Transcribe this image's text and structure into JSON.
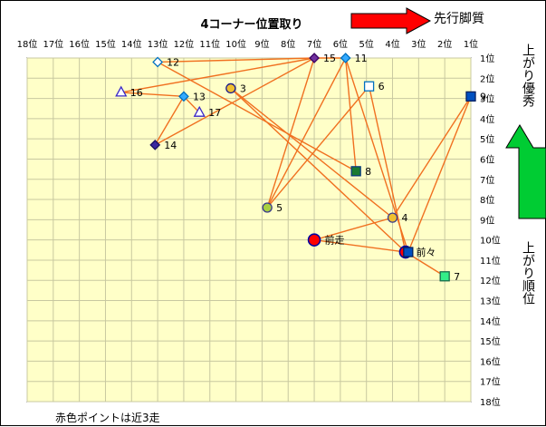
{
  "chart_data": {
    "type": "scatter",
    "title": "4コーナー位置取り",
    "x_arrow_label": "先行脚質",
    "y_arrow_label": "上がり優秀",
    "y_side_label": "上がり順位",
    "footnote": "赤色ポイントは近3走",
    "x_ticks": [
      "18位",
      "17位",
      "16位",
      "15位",
      "14位",
      "13位",
      "12位",
      "11位",
      "10位",
      "9位",
      "8位",
      "7位",
      "6位",
      "5位",
      "4位",
      "3位",
      "2位",
      "1位"
    ],
    "y_ticks": [
      "1位",
      "2位",
      "3位",
      "4位",
      "5位",
      "6位",
      "7位",
      "8位",
      "9位",
      "10位",
      "11位",
      "12位",
      "13位",
      "14位",
      "15位",
      "16位",
      "17位",
      "18位"
    ],
    "xlim": [
      18,
      1
    ],
    "ylim": [
      1,
      18
    ],
    "grid": true,
    "colors": {
      "line": "#f07020",
      "plot_bg": "#ffffc8",
      "grid": "#c8c8a0",
      "arrow_red": "#ff0000",
      "arrow_green": "#00cc33"
    },
    "points": [
      {
        "label": "15",
        "x": 7.0,
        "y": 1.0,
        "marker": "diamond",
        "fill": "#7030a0",
        "stroke": "#3a0060"
      },
      {
        "label": "11",
        "x": 5.8,
        "y": 1.0,
        "marker": "diamond",
        "fill": "#33aaff",
        "stroke": "#0070c0"
      },
      {
        "label": "12",
        "x": 13.0,
        "y": 1.2,
        "marker": "diamond",
        "fill": "#ffffff",
        "stroke": "#0070c0"
      },
      {
        "label": "6",
        "x": 4.9,
        "y": 2.4,
        "marker": "square",
        "fill": "#ffffff",
        "stroke": "#0070c0"
      },
      {
        "label": "3",
        "x": 10.2,
        "y": 2.5,
        "marker": "circle",
        "fill": "#f0c030",
        "stroke": "#1a1a8c"
      },
      {
        "label": "9",
        "x": 1.0,
        "y": 2.9,
        "marker": "square",
        "fill": "#0050c0",
        "stroke": "#002060"
      },
      {
        "label": "16",
        "x": 14.4,
        "y": 2.7,
        "marker": "triangle",
        "fill": "#ffffff",
        "stroke": "#3a28c8"
      },
      {
        "label": "13",
        "x": 12.0,
        "y": 2.9,
        "marker": "diamond",
        "fill": "#33aaff",
        "stroke": "#0070c0"
      },
      {
        "label": "17",
        "x": 11.4,
        "y": 3.7,
        "marker": "triangle",
        "fill": "#ffffff",
        "stroke": "#3a28c8"
      },
      {
        "label": "14",
        "x": 13.1,
        "y": 5.3,
        "marker": "diamond",
        "fill": "#3a28a0",
        "stroke": "#1a1060"
      },
      {
        "label": "8",
        "x": 5.4,
        "y": 6.6,
        "marker": "square",
        "fill": "#1a7a30",
        "stroke": "#0a3a80"
      },
      {
        "label": "5",
        "x": 8.8,
        "y": 8.4,
        "marker": "circle",
        "fill": "#a8d040",
        "stroke": "#3a3a8c"
      },
      {
        "label": "4",
        "x": 4.0,
        "y": 8.9,
        "marker": "circle",
        "fill": "#f0c030",
        "stroke": "#3a3a8c"
      },
      {
        "label": "前走",
        "x": 7.0,
        "y": 10.0,
        "marker": "circle-big",
        "fill": "#ff0000",
        "stroke": "#0000a0"
      },
      {
        "label": "前々",
        "x": 3.5,
        "y": 10.6,
        "marker": "circle-big",
        "fill": "#ff0000",
        "stroke": "#0000a0"
      },
      {
        "label": "",
        "x": 3.4,
        "y": 10.6,
        "marker": "square",
        "fill": "#0050c0",
        "stroke": "#002060"
      },
      {
        "label": "7",
        "x": 2.0,
        "y": 11.8,
        "marker": "square",
        "fill": "#33ee88",
        "stroke": "#1a6a4a"
      }
    ],
    "connections": [
      [
        2,
        0
      ],
      [
        0,
        1
      ],
      [
        2,
        10
      ],
      [
        0,
        11
      ],
      [
        1,
        11
      ],
      [
        3,
        14
      ],
      [
        4,
        12
      ],
      [
        4,
        14
      ],
      [
        5,
        12
      ],
      [
        6,
        7
      ],
      [
        6,
        0
      ],
      [
        7,
        8
      ],
      [
        7,
        9
      ],
      [
        9,
        0
      ],
      [
        10,
        1
      ],
      [
        11,
        3
      ],
      [
        12,
        13
      ],
      [
        13,
        14
      ],
      [
        14,
        16
      ],
      [
        15,
        1
      ],
      [
        15,
        5
      ]
    ]
  }
}
